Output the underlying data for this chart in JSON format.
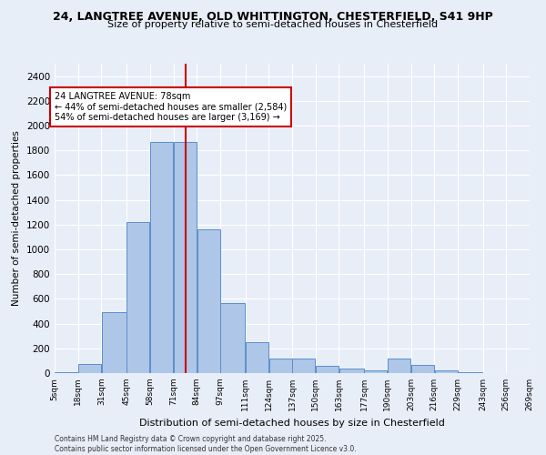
{
  "title_line1": "24, LANGTREE AVENUE, OLD WHITTINGTON, CHESTERFIELD, S41 9HP",
  "title_line2": "Size of property relative to semi-detached houses in Chesterfield",
  "xlabel": "Distribution of semi-detached houses by size in Chesterfield",
  "ylabel": "Number of semi-detached properties",
  "footer_line1": "Contains HM Land Registry data © Crown copyright and database right 2025.",
  "footer_line2": "Contains public sector information licensed under the Open Government Licence v3.0.",
  "property_size": 78,
  "annotation_title": "24 LANGTREE AVENUE: 78sqm",
  "annotation_line1": "← 44% of semi-detached houses are smaller (2,584)",
  "annotation_line2": "54% of semi-detached houses are larger (3,169) →",
  "bar_edges": [
    5,
    18,
    31,
    45,
    58,
    71,
    84,
    97,
    111,
    124,
    137,
    150,
    163,
    177,
    190,
    203,
    216,
    229,
    243,
    256,
    269
  ],
  "bar_heights": [
    10,
    70,
    490,
    1220,
    1870,
    1870,
    1160,
    565,
    250,
    120,
    120,
    60,
    35,
    20,
    115,
    65,
    25,
    5,
    3,
    2
  ],
  "bar_color": "#aec6e8",
  "bar_edge_color": "#5b8fc9",
  "vline_color": "#cc0000",
  "vline_x": 78,
  "annotation_box_color": "#cc0000",
  "bg_color": "#e8eef8",
  "ylim": [
    0,
    2500
  ],
  "yticks": [
    0,
    200,
    400,
    600,
    800,
    1000,
    1200,
    1400,
    1600,
    1800,
    2000,
    2200,
    2400
  ]
}
